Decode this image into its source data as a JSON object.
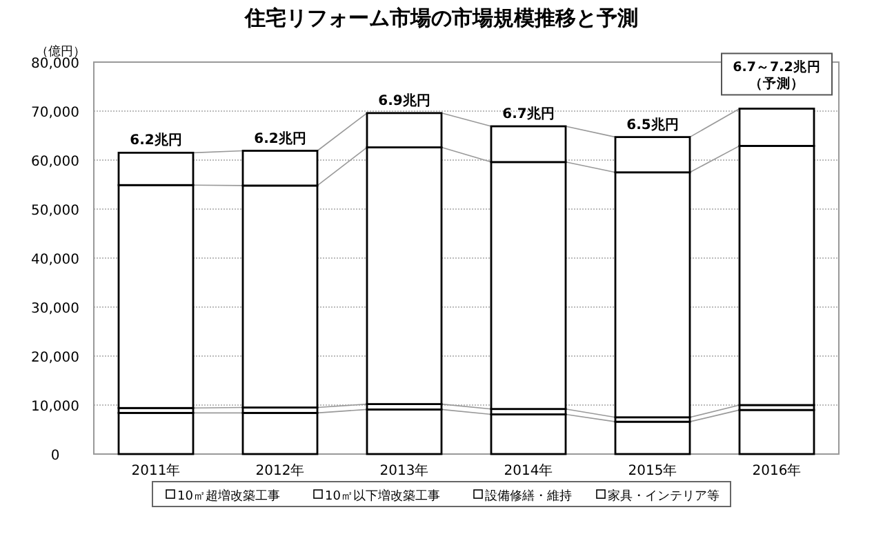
{
  "chart_data": {
    "type": "bar",
    "title": "住宅リフォーム市場の市場規模推移と予測",
    "ylabel": "（億円）",
    "categories": [
      "2011年",
      "2012年",
      "2013年",
      "2014年",
      "2015年",
      "2016年"
    ],
    "stacked": true,
    "series": [
      {
        "name": "10㎡超増改築工事",
        "color": "#ffffff",
        "values": [
          8400,
          8400,
          9100,
          8100,
          6600,
          9000
        ]
      },
      {
        "name": "10㎡以下増改築工事",
        "color": "#ffffff",
        "values": [
          1000,
          1100,
          1100,
          1100,
          900,
          1000
        ]
      },
      {
        "name": "設備修繕・維持",
        "color": "#ffffff",
        "values": [
          45500,
          45300,
          52400,
          50400,
          50000,
          52900
        ]
      },
      {
        "name": "家具・インテリア等",
        "color": "#ffffff",
        "values": [
          6600,
          7100,
          7000,
          7300,
          7200,
          7600
        ]
      }
    ],
    "annotations": [
      {
        "text": "6.2兆円",
        "x": "2011年",
        "y": 61500
      },
      {
        "text": "6.2兆円",
        "x": "2012年",
        "y": 61900
      },
      {
        "text": "6.9兆円",
        "x": "2013年",
        "y": 69600
      },
      {
        "text": "6.7兆円",
        "x": "2014年",
        "y": 66900
      },
      {
        "text": "6.5兆円",
        "x": "2015年",
        "y": 64700
      },
      {
        "text": "6.7～7.2兆円",
        "x": "2016年",
        "y": 70500
      },
      "（予測）"
    ],
    "ylim": [
      0,
      80000
    ],
    "yticks": [
      {
        "value": 0,
        "label": "0"
      },
      {
        "value": 10000,
        "label": "10,000"
      },
      {
        "value": 20000,
        "label": "20,000"
      },
      {
        "value": 30000,
        "label": "30,000"
      },
      {
        "value": 40000,
        "label": "40,000"
      },
      {
        "value": 50000,
        "label": "50,000"
      },
      {
        "value": 60000,
        "label": "60,000"
      },
      {
        "value": 70000,
        "label": "70,000"
      },
      {
        "value": 80000,
        "label": "80,000"
      }
    ],
    "grid": "y",
    "legend": "bottom"
  }
}
